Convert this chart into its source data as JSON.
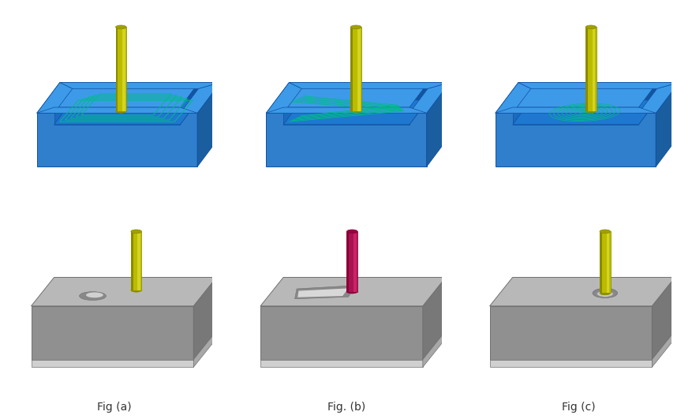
{
  "title": "",
  "background_color": "#ffffff",
  "fig_labels": [
    "Fig (a)",
    "Fig. (b)",
    "Fig (c)"
  ],
  "label_fontsize": 10,
  "label_color": "#333333",
  "figsize": [
    8.78,
    5.31
  ],
  "dpi": 100,
  "blue_face_front": "#2F7FCC",
  "blue_face_right": "#1A5EA0",
  "blue_face_top": "#3D9AE8",
  "blue_cavity_inner": "#1A6BBF",
  "blue_cavity_floor": "#1E78D0",
  "blue_edge": "#1050A0",
  "green_path": "#00BB88",
  "gray_face_top": "#B8B8B8",
  "gray_face_front": "#909090",
  "gray_face_right": "#787878",
  "gray_face_bottom": "#D0D0D0",
  "gray_edge": "#707070",
  "tool_yellow_light": "#D4D422",
  "tool_yellow_mid": "#BBBB00",
  "tool_yellow_dark": "#8A8A00",
  "tool_yellow_top": "#A0A000",
  "tool_magenta_light": "#CC2266",
  "tool_magenta_mid": "#AA1155",
  "tool_magenta_dark": "#880033",
  "tool_magenta_top": "#990044"
}
